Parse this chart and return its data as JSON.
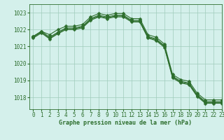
{
  "title": "Graphe pression niveau de la mer (hPa)",
  "background_color": "#d4f0eb",
  "grid_color": "#a0ccbb",
  "line_color": "#2d6e2d",
  "xlim": [
    -0.5,
    23
  ],
  "ylim": [
    1017.3,
    1023.5
  ],
  "yticks": [
    1018,
    1019,
    1020,
    1021,
    1022,
    1023
  ],
  "xticks": [
    0,
    1,
    2,
    3,
    4,
    5,
    6,
    7,
    8,
    9,
    10,
    11,
    12,
    13,
    14,
    15,
    16,
    17,
    18,
    19,
    20,
    21,
    22,
    23
  ],
  "series": [
    [
      1021.6,
      1021.9,
      1021.7,
      1022.0,
      1022.2,
      1022.2,
      1022.3,
      1022.75,
      1022.95,
      1022.85,
      1022.95,
      1022.95,
      1022.65,
      1022.65,
      1021.7,
      1021.55,
      1021.15,
      1019.35,
      1019.05,
      1018.95,
      1018.25,
      1017.85,
      1017.85,
      1017.85
    ],
    [
      1021.6,
      1021.9,
      1021.55,
      1021.85,
      1022.1,
      1022.1,
      1022.2,
      1022.65,
      1022.85,
      1022.75,
      1022.85,
      1022.85,
      1022.55,
      1022.55,
      1021.6,
      1021.45,
      1021.05,
      1019.25,
      1018.95,
      1018.85,
      1018.15,
      1017.75,
      1017.75,
      1017.75
    ],
    [
      1021.55,
      1021.85,
      1021.5,
      1021.8,
      1022.05,
      1022.05,
      1022.15,
      1022.6,
      1022.8,
      1022.7,
      1022.8,
      1022.8,
      1022.5,
      1022.5,
      1021.55,
      1021.4,
      1021.0,
      1019.2,
      1018.9,
      1018.8,
      1018.1,
      1017.7,
      1017.7,
      1017.7
    ],
    [
      1021.5,
      1021.8,
      1021.45,
      1021.75,
      1022.0,
      1022.0,
      1022.1,
      1022.55,
      1022.75,
      1022.65,
      1022.75,
      1022.75,
      1022.45,
      1022.45,
      1021.5,
      1021.35,
      1020.95,
      1019.15,
      1018.85,
      1018.75,
      1018.05,
      1017.65,
      1017.65,
      1017.65
    ]
  ],
  "marker": "D",
  "markersize": 2.5,
  "linewidth": 0.8,
  "tick_fontsize": 5.5,
  "label_fontsize": 6.0
}
